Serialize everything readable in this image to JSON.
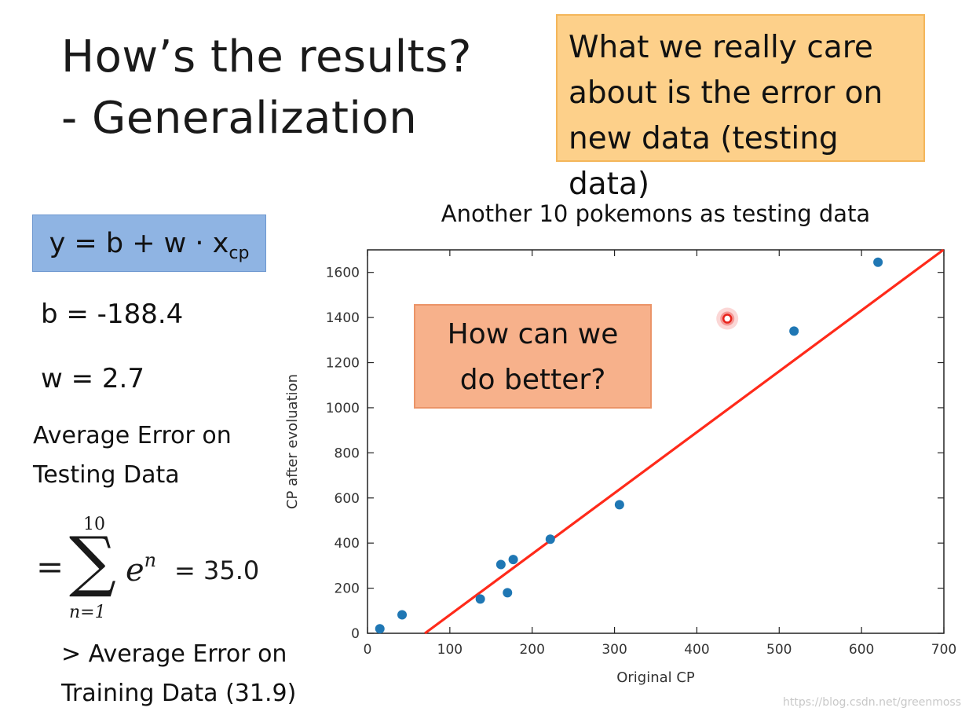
{
  "slide": {
    "title_line1": "How’s the results?",
    "title_line2": "- Generalization",
    "callout_line1": "What we really care",
    "callout_line2": "about is the error on",
    "callout_line3": "new data (testing data)",
    "formula_main": "y = b + w · x",
    "formula_sub": "cp",
    "b_param": "b = -188.4",
    "w_param": "w = 2.7",
    "avg_line1": "Average Error on",
    "avg_line2": "Testing Data",
    "sum_eq": "=",
    "sum_upper": "10",
    "sum_sigma": "∑",
    "sum_lower": "n=1",
    "sum_term": "e",
    "sum_term_sup": "n",
    "sum_value": "= 35.0",
    "compare_line1": "> Average Error on",
    "compare_line2": "Training Data (31.9)",
    "chart_callout_line1": "How can we",
    "chart_callout_line2": "do better?",
    "watermark": "https://blog.csdn.net/greenmoss"
  },
  "chart_data": {
    "type": "scatter",
    "title": "Another 10 pokemons as testing data",
    "xlabel": "Original CP",
    "ylabel": "CP after evoluation",
    "xlim": [
      0,
      700
    ],
    "ylim": [
      0,
      1700
    ],
    "xticks": [
      0,
      100,
      200,
      300,
      400,
      500,
      600,
      700
    ],
    "yticks": [
      0,
      200,
      400,
      600,
      800,
      1000,
      1200,
      1400,
      1600
    ],
    "points": [
      {
        "x": 15,
        "y": 20
      },
      {
        "x": 42,
        "y": 82
      },
      {
        "x": 137,
        "y": 152
      },
      {
        "x": 162,
        "y": 305
      },
      {
        "x": 170,
        "y": 180
      },
      {
        "x": 177,
        "y": 327
      },
      {
        "x": 222,
        "y": 417
      },
      {
        "x": 306,
        "y": 570
      },
      {
        "x": 518,
        "y": 1340
      },
      {
        "x": 620,
        "y": 1645
      }
    ],
    "highlighted_point": {
      "x": 437,
      "y": 1395
    },
    "fit_line": {
      "b": -188.4,
      "w": 2.7,
      "color": "#ff2a1a"
    },
    "point_color": "#1f77b4",
    "highlight_color": "#e8231c"
  }
}
